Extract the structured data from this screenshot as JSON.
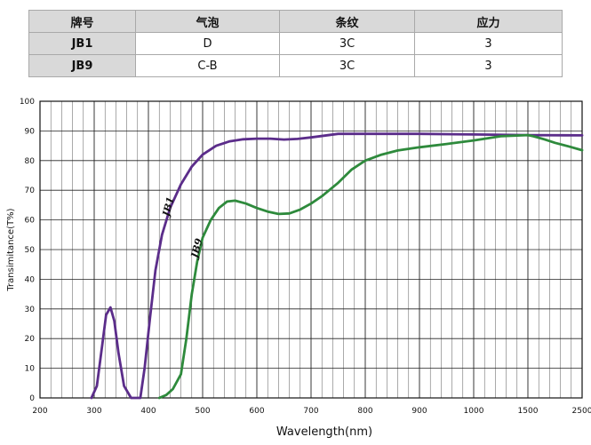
{
  "table": {
    "headers": [
      "牌号",
      "气泡",
      "条纹",
      "应力"
    ],
    "rows": [
      [
        "JB1",
        "D",
        "3C",
        "3"
      ],
      [
        "JB9",
        "C-B",
        "3C",
        "3"
      ]
    ]
  },
  "chart_data": {
    "type": "line",
    "xlabel": "Wavelength(nm)",
    "ylabel": "Transimitance(T%)",
    "x_ticks": [
      "200",
      "300",
      "400",
      "500",
      "600",
      "700",
      "800",
      "900",
      "1000",
      "1500",
      "2500"
    ],
    "y_ticks": [
      0,
      10,
      20,
      30,
      40,
      50,
      60,
      70,
      80,
      90,
      100
    ],
    "ylim": [
      0,
      100
    ],
    "grid": true,
    "x_scale": "piecewise: 100 nm per major division from 200 to 1000, then 1000-1500 and 1500-2500 per division",
    "series": [
      {
        "name": "JB1",
        "color": "#5b2d8a",
        "points": [
          [
            295,
            0
          ],
          [
            305,
            4
          ],
          [
            315,
            18
          ],
          [
            322,
            28
          ],
          [
            330,
            30.5
          ],
          [
            337,
            26
          ],
          [
            345,
            15
          ],
          [
            355,
            4
          ],
          [
            368,
            0
          ],
          [
            385,
            0
          ],
          [
            393,
            10
          ],
          [
            403,
            27
          ],
          [
            413,
            43
          ],
          [
            425,
            55
          ],
          [
            440,
            64
          ],
          [
            460,
            72
          ],
          [
            480,
            78
          ],
          [
            500,
            82
          ],
          [
            525,
            85
          ],
          [
            550,
            86.5
          ],
          [
            575,
            87.2
          ],
          [
            600,
            87.4
          ],
          [
            625,
            87.4
          ],
          [
            650,
            87.1
          ],
          [
            675,
            87.3
          ],
          [
            700,
            87.8
          ],
          [
            725,
            88.4
          ],
          [
            750,
            89
          ],
          [
            800,
            89
          ],
          [
            900,
            89
          ],
          [
            1000,
            88.8
          ],
          [
            1500,
            88.6
          ],
          [
            2500,
            88.5
          ]
        ]
      },
      {
        "name": "JB9",
        "color": "#2e8a3c",
        "points": [
          [
            420,
            0
          ],
          [
            433,
            1
          ],
          [
            445,
            3
          ],
          [
            460,
            8
          ],
          [
            470,
            20
          ],
          [
            480,
            35
          ],
          [
            490,
            46
          ],
          [
            500,
            54
          ],
          [
            515,
            60
          ],
          [
            530,
            64
          ],
          [
            545,
            66.2
          ],
          [
            560,
            66.5
          ],
          [
            580,
            65.5
          ],
          [
            600,
            64
          ],
          [
            620,
            62.8
          ],
          [
            640,
            62
          ],
          [
            660,
            62.2
          ],
          [
            680,
            63.5
          ],
          [
            700,
            65.5
          ],
          [
            720,
            68
          ],
          [
            750,
            72.5
          ],
          [
            775,
            77
          ],
          [
            800,
            80
          ],
          [
            830,
            82
          ],
          [
            860,
            83.4
          ],
          [
            900,
            84.5
          ],
          [
            950,
            85.6
          ],
          [
            1000,
            86.8
          ],
          [
            1250,
            88.2
          ],
          [
            1500,
            88.6
          ],
          [
            1600,
            88.2
          ],
          [
            1800,
            87.2
          ],
          [
            2000,
            86
          ],
          [
            2250,
            84.8
          ],
          [
            2500,
            83.5
          ]
        ]
      }
    ]
  }
}
